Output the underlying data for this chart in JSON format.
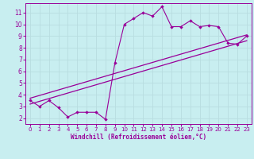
{
  "xlabel": "Windchill (Refroidissement éolien,°C)",
  "background_color": "#c8eef0",
  "line_color": "#990099",
  "grid_color": "#b8dde0",
  "x_ticks": [
    0,
    1,
    2,
    3,
    4,
    5,
    6,
    7,
    8,
    9,
    10,
    11,
    12,
    13,
    14,
    15,
    16,
    17,
    18,
    19,
    20,
    21,
    22,
    23
  ],
  "y_ticks": [
    2,
    3,
    4,
    5,
    6,
    7,
    8,
    9,
    10,
    11
  ],
  "ylim": [
    1.5,
    11.8
  ],
  "xlim": [
    -0.5,
    23.5
  ],
  "scatter_x": [
    0,
    1,
    2,
    3,
    4,
    5,
    6,
    7,
    8,
    9,
    10,
    11,
    12,
    13,
    14,
    15,
    16,
    17,
    18,
    19,
    20,
    21,
    22,
    23
  ],
  "scatter_y": [
    3.5,
    3.0,
    3.5,
    2.9,
    2.1,
    2.5,
    2.5,
    2.5,
    1.9,
    6.7,
    10.0,
    10.5,
    11.0,
    10.7,
    11.5,
    9.8,
    9.8,
    10.3,
    9.8,
    9.9,
    9.8,
    8.4,
    8.3,
    9.0
  ],
  "reg_line1_x": [
    0,
    23
  ],
  "reg_line1_y": [
    3.2,
    8.6
  ],
  "reg_line2_x": [
    0,
    23
  ],
  "reg_line2_y": [
    3.7,
    9.1
  ],
  "xlabel_fontsize": 5.5,
  "tick_fontsize_x": 5.0,
  "tick_fontsize_y": 5.5
}
